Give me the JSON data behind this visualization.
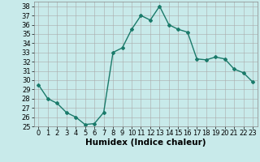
{
  "x": [
    0,
    1,
    2,
    3,
    4,
    5,
    6,
    7,
    8,
    9,
    10,
    11,
    12,
    13,
    14,
    15,
    16,
    17,
    18,
    19,
    20,
    21,
    22,
    23
  ],
  "y": [
    29.5,
    28.0,
    27.5,
    26.5,
    26.0,
    25.2,
    25.3,
    26.5,
    33.0,
    33.5,
    35.5,
    37.0,
    36.5,
    38.0,
    36.0,
    35.5,
    35.2,
    32.3,
    32.2,
    32.5,
    32.3,
    31.2,
    30.8,
    29.8
  ],
  "line_color": "#1a7a6a",
  "marker": "D",
  "markersize": 2.0,
  "linewidth": 1.0,
  "background_color": "#c8eaea",
  "grid_color": "#aaaaaa",
  "xlabel": "Humidex (Indice chaleur)",
  "xlim": [
    -0.5,
    23.5
  ],
  "ylim": [
    25,
    38.5
  ],
  "yticks": [
    25,
    26,
    27,
    28,
    29,
    30,
    31,
    32,
    33,
    34,
    35,
    36,
    37,
    38
  ],
  "xticks": [
    0,
    1,
    2,
    3,
    4,
    5,
    6,
    7,
    8,
    9,
    10,
    11,
    12,
    13,
    14,
    15,
    16,
    17,
    18,
    19,
    20,
    21,
    22,
    23
  ],
  "xlabel_fontsize": 7.5,
  "tick_fontsize": 6.0,
  "fig_width": 3.2,
  "fig_height": 2.0
}
